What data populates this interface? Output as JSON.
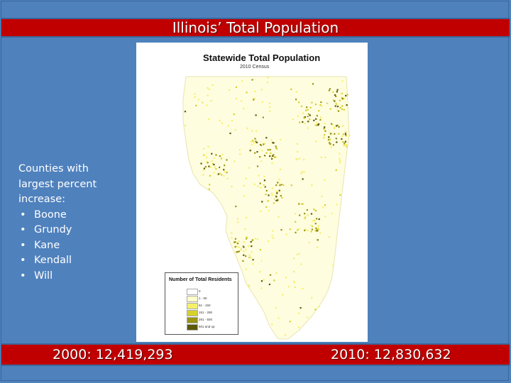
{
  "slide": {
    "title": "Illinois’ Total Population",
    "counties_heading": "Counties with largest percent increase:",
    "counties": [
      "Boone",
      "Grundy",
      "Kane",
      "Kendall",
      "Will"
    ],
    "stat_2000": "2000: 12,419,293",
    "stat_2010": "2010: 12,830,632"
  },
  "map": {
    "title": "Statewide Total Population",
    "subtitle": "2010 Census",
    "legend": {
      "title": "Number of Total Residents",
      "items": [
        {
          "label": "0",
          "color": "#ffffff"
        },
        {
          "label": "1 - 60",
          "color": "#ffffcc"
        },
        {
          "label": "61 - 150",
          "color": "#f5f06a"
        },
        {
          "label": "151 - 290",
          "color": "#d6d02c"
        },
        {
          "label": "291 - 500",
          "color": "#9a9414"
        },
        {
          "label": "501 and up",
          "color": "#5c5808"
        }
      ]
    }
  },
  "colors": {
    "background": "#4f81bd",
    "bar": "#c00000",
    "text": "#ffffff"
  }
}
